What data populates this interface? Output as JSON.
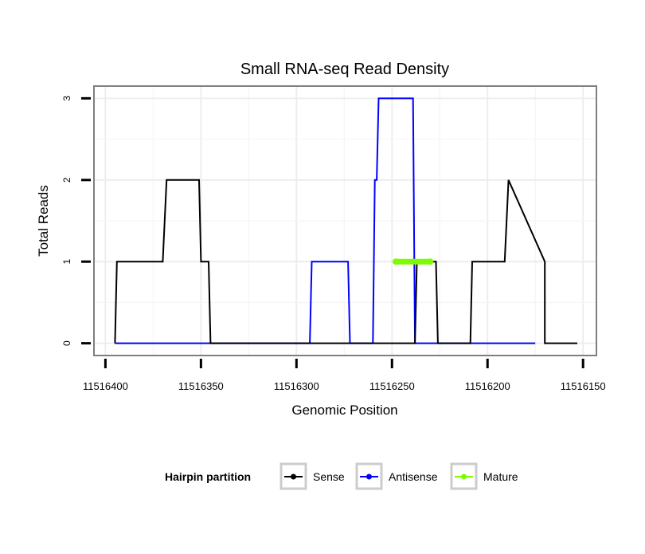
{
  "chart_data": {
    "type": "line",
    "title": "Small RNA-seq Read Density",
    "xlabel": "Genomic Position",
    "ylabel": "Total Reads",
    "x_reversed": true,
    "xlim": [
      11516406,
      11516143
    ],
    "ylim": [
      -0.15,
      3.15
    ],
    "x_ticks": [
      11516400,
      11516350,
      11516300,
      11516250,
      11516200,
      11516150
    ],
    "x_tick_labels": [
      "11516400",
      "11516350",
      "11516300",
      "11516250",
      "11516200",
      "11516150"
    ],
    "y_ticks": [
      0,
      1,
      2,
      3
    ],
    "y_tick_labels": [
      "0",
      "1",
      "2",
      "3"
    ],
    "grid": true,
    "legend": {
      "title": "Hairpin partition",
      "placement": "bottom",
      "entries": [
        "Sense",
        "Antisense",
        "Mature"
      ]
    },
    "series": [
      {
        "name": "Sense",
        "color": "#000000",
        "x": [
          11516395,
          11516394,
          11516370,
          11516368,
          11516351,
          11516350,
          11516346,
          11516345,
          11516278,
          11516278,
          11516257,
          11516250,
          11516238,
          11516237,
          11516227,
          11516226,
          11516209,
          11516208,
          11516205,
          11516207,
          11516191,
          11516189,
          11516170,
          11516170,
          11516153
        ],
        "y": [
          0,
          1,
          1,
          2,
          2,
          1,
          1,
          0,
          0,
          0,
          0,
          0,
          0,
          1,
          1,
          0,
          0,
          1,
          1,
          1,
          1,
          2,
          1,
          0,
          0
        ]
      },
      {
        "name": "Antisense",
        "color": "#0000ff",
        "x": [
          11516395,
          11516340,
          11516293,
          11516292,
          11516273,
          11516272,
          11516260,
          11516259,
          11516258,
          11516257,
          11516239,
          11516238,
          11516232,
          11516175
        ],
        "y": [
          0,
          0,
          0,
          1,
          1,
          0,
          0,
          2,
          2,
          3,
          3,
          0,
          0,
          0
        ]
      },
      {
        "name": "Mature",
        "color": "#7cfc00",
        "x": [
          11516248,
          11516230
        ],
        "y": [
          1,
          1
        ]
      }
    ]
  }
}
